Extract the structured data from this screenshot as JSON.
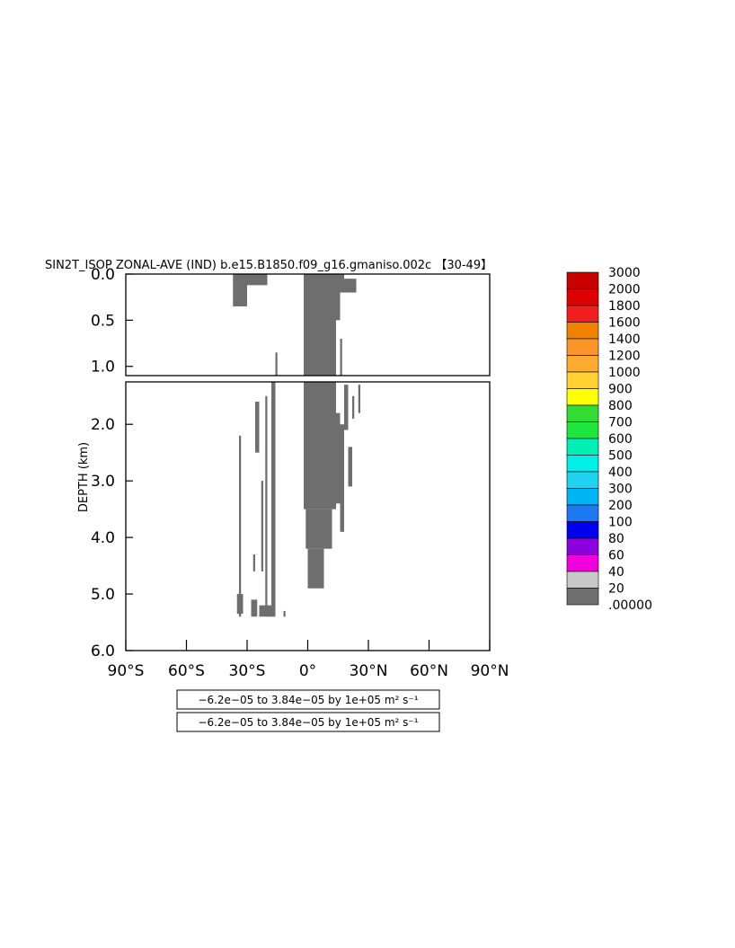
{
  "title": "SIN2T_ISOP ZONAL-AVE (IND) b.e15.B1850.f09_g16.gmaniso.002c 【30-49】",
  "info_boxes": [
    {
      "text": "−6.2e−05 to 3.84e−05 by 1e+05 m² s⁻¹"
    },
    {
      "text": "−6.2e−05 to 3.84e−05 by 1e+05 m² s⁻¹"
    }
  ],
  "chart_data": {
    "type": "heatmap",
    "title": "SIN2T_ISOP ZONAL-AVE (IND) b.e15.B1850.f09_g16.gmaniso.002c 【30-49】",
    "xlabel": "",
    "ylabel": "DEPTH (km)",
    "x_ticks": [
      {
        "value": -90,
        "label": "90°S"
      },
      {
        "value": -60,
        "label": "60°S"
      },
      {
        "value": -30,
        "label": "30°S"
      },
      {
        "value": 0,
        "label": "0°"
      },
      {
        "value": 30,
        "label": "30°N"
      },
      {
        "value": 60,
        "label": "60°N"
      },
      {
        "value": 90,
        "label": "90°N"
      }
    ],
    "xlim": [
      -90,
      90
    ],
    "upper_panel": {
      "ylim": [
        0.0,
        1.1
      ],
      "y_ticks": [
        {
          "value": 0.0,
          "label": "0.0"
        },
        {
          "value": 0.5,
          "label": "0.5"
        },
        {
          "value": 1.0,
          "label": "1.0"
        }
      ]
    },
    "lower_panel": {
      "ylim": [
        1.25,
        6.0
      ],
      "y_ticks": [
        {
          "value": 2.0,
          "label": "2.0"
        },
        {
          "value": 3.0,
          "label": "3.0"
        },
        {
          "value": 4.0,
          "label": "4.0"
        },
        {
          "value": 5.0,
          "label": "5.0"
        },
        {
          "value": 6.0,
          "label": "6.0"
        }
      ]
    },
    "legend": {
      "placement": "right",
      "levels": [
        {
          "label": "3000",
          "color": "#c80000"
        },
        {
          "label": "2000",
          "color": "#dc0000"
        },
        {
          "label": "1800",
          "color": "#f01e1e"
        },
        {
          "label": "1600",
          "color": "#f08200"
        },
        {
          "label": "1400",
          "color": "#fa9628"
        },
        {
          "label": "1200",
          "color": "#ffaa32"
        },
        {
          "label": "1000",
          "color": "#ffd232"
        },
        {
          "label": "900",
          "color": "#ffff00"
        },
        {
          "label": "800",
          "color": "#32dc32"
        },
        {
          "label": "700",
          "color": "#1ee63c"
        },
        {
          "label": "600",
          "color": "#00f0b4"
        },
        {
          "label": "500",
          "color": "#00f0e6"
        },
        {
          "label": "400",
          "color": "#1ed2f0"
        },
        {
          "label": "300",
          "color": "#00b4f5"
        },
        {
          "label": "200",
          "color": "#1e78f0"
        },
        {
          "label": "100",
          "color": "#0000f0"
        },
        {
          "label": "80",
          "color": "#8c00dc"
        },
        {
          "label": "60",
          "color": "#f000dc"
        },
        {
          "label": "40",
          "color": "#c8c8c8"
        },
        {
          "label": "20",
          "color": "#6e6e6e"
        },
        {
          "label": ".00000",
          "color": ""
        }
      ]
    },
    "fill_color": "#6e6e6e",
    "regions": [
      {
        "lat": [
          -37,
          -30
        ],
        "depth": [
          0.0,
          0.35
        ]
      },
      {
        "lat": [
          -32,
          -20
        ],
        "depth": [
          0.0,
          0.12
        ]
      },
      {
        "lat": [
          -27,
          -24
        ],
        "depth": [
          0.0,
          0.05
        ]
      },
      {
        "lat": [
          -2,
          14
        ],
        "depth": [
          0.0,
          1.1
        ]
      },
      {
        "lat": [
          -1,
          8
        ],
        "depth": [
          0.0,
          0.1
        ]
      },
      {
        "lat": [
          8,
          12
        ],
        "depth": [
          0.0,
          0.25
        ]
      },
      {
        "lat": [
          10,
          14
        ],
        "depth": [
          0.05,
          0.35
        ]
      },
      {
        "lat": [
          14,
          16
        ],
        "depth": [
          0.1,
          0.5
        ]
      },
      {
        "lat": [
          14,
          18
        ],
        "depth": [
          0.0,
          0.2
        ]
      },
      {
        "lat": [
          18,
          24
        ],
        "depth": [
          0.05,
          0.2
        ]
      },
      {
        "lat": [
          16,
          17
        ],
        "depth": [
          0.7,
          1.1
        ]
      },
      {
        "lat": [
          -16,
          -15
        ],
        "depth": [
          0.85,
          1.1
        ]
      },
      {
        "lat": [
          -2,
          14
        ],
        "depth": [
          1.25,
          3.5
        ]
      },
      {
        "lat": [
          -1,
          12
        ],
        "depth": [
          3.5,
          4.2
        ]
      },
      {
        "lat": [
          0,
          8
        ],
        "depth": [
          4.2,
          4.9
        ]
      },
      {
        "lat": [
          7,
          10
        ],
        "depth": [
          1.25,
          1.6
        ]
      },
      {
        "lat": [
          14,
          16
        ],
        "depth": [
          1.8,
          3.4
        ]
      },
      {
        "lat": [
          16,
          18
        ],
        "depth": [
          2.0,
          3.9
        ]
      },
      {
        "lat": [
          18,
          20
        ],
        "depth": [
          1.3,
          2.1
        ]
      },
      {
        "lat": [
          20,
          22
        ],
        "depth": [
          2.4,
          3.1
        ]
      },
      {
        "lat": [
          22,
          23
        ],
        "depth": [
          1.5,
          1.9
        ]
      },
      {
        "lat": [
          25,
          26
        ],
        "depth": [
          1.3,
          1.8
        ]
      },
      {
        "lat": [
          -18,
          -16
        ],
        "depth": [
          1.25,
          5.4
        ]
      },
      {
        "lat": [
          -21,
          -20
        ],
        "depth": [
          1.5,
          5.3
        ]
      },
      {
        "lat": [
          -23,
          -22
        ],
        "depth": [
          3.0,
          4.6
        ]
      },
      {
        "lat": [
          -26,
          -24
        ],
        "depth": [
          1.6,
          2.5
        ]
      },
      {
        "lat": [
          -27,
          -26
        ],
        "depth": [
          4.3,
          4.6
        ]
      },
      {
        "lat": [
          -34,
          -33
        ],
        "depth": [
          2.2,
          5.4
        ]
      },
      {
        "lat": [
          -35,
          -32
        ],
        "depth": [
          5.0,
          5.35
        ]
      },
      {
        "lat": [
          -28,
          -25
        ],
        "depth": [
          5.1,
          5.4
        ]
      },
      {
        "lat": [
          -24,
          -17
        ],
        "depth": [
          5.2,
          5.4
        ]
      },
      {
        "lat": [
          -12,
          -11
        ],
        "depth": [
          5.3,
          5.4
        ]
      }
    ]
  }
}
